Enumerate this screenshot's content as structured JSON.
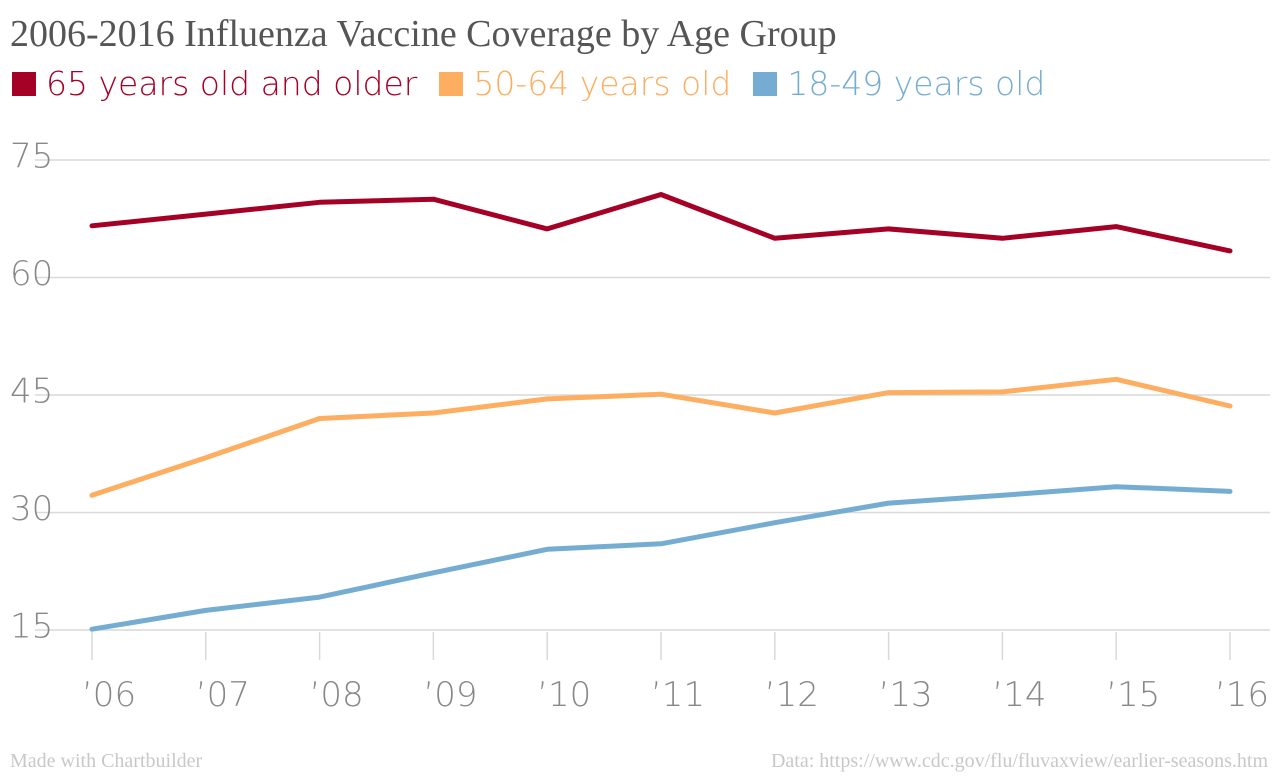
{
  "chart_data": {
    "type": "line",
    "title": "2006-2016 Influenza Vaccine Coverage by Age Group",
    "categories": [
      "’06",
      "’07",
      "’08",
      "’09",
      "’10",
      "’11",
      "’12",
      "’13",
      "’14",
      "’15",
      "’16"
    ],
    "series": [
      {
        "name": "65 years old and older",
        "color": "#a50026",
        "values": [
          66.6,
          68.1,
          69.6,
          70.0,
          66.2,
          70.6,
          65.0,
          66.2,
          65.0,
          66.5,
          63.4
        ]
      },
      {
        "name": "50-64 years old",
        "color": "#fdae61",
        "values": [
          32.2,
          37.0,
          42.0,
          42.7,
          44.5,
          45.1,
          42.7,
          45.3,
          45.4,
          47.0,
          43.6
        ]
      },
      {
        "name": "18-49 years old",
        "color": "#74add1",
        "values": [
          15.1,
          17.5,
          19.2,
          22.3,
          25.3,
          26.0,
          28.7,
          31.2,
          32.2,
          33.3,
          32.7
        ]
      }
    ],
    "yticks": [
      15,
      30,
      45,
      60,
      75
    ],
    "ylim": [
      15,
      75
    ],
    "grid": true,
    "legend_position": "top"
  },
  "footer": {
    "credit": "Made with Chartbuilder",
    "source": "Data: https://www.cdc.gov/flu/fluvaxview/earlier-seasons.htm"
  }
}
